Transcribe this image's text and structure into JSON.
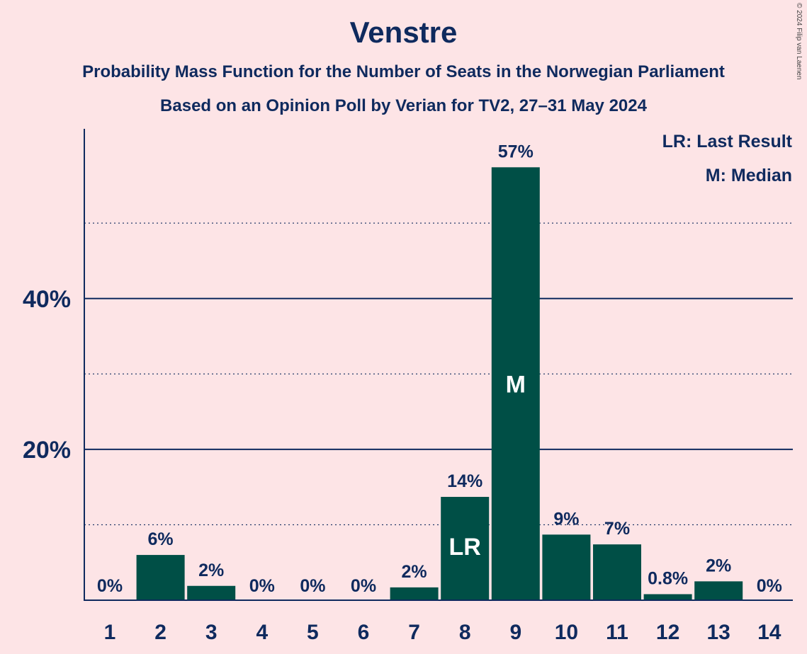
{
  "chart_data": {
    "type": "bar",
    "title": "Venstre",
    "subtitle": "Probability Mass Function for the Number of Seats in the Norwegian Parliament",
    "source": "Based on an Opinion Poll by Verian for TV2, 27–31 May 2024",
    "copyright": "© 2024 Filip van Laenen",
    "categories": [
      "1",
      "2",
      "3",
      "4",
      "5",
      "6",
      "7",
      "8",
      "9",
      "10",
      "11",
      "12",
      "13",
      "14"
    ],
    "values": [
      0,
      6.0,
      1.9,
      0,
      0,
      0,
      1.7,
      13.7,
      57.4,
      8.7,
      7.4,
      0.8,
      2.5,
      0
    ],
    "value_labels": [
      "0%",
      "6%",
      "2%",
      "0%",
      "0%",
      "0%",
      "2%",
      "14%",
      "57%",
      "9%",
      "7%",
      "0.8%",
      "2%",
      "0%"
    ],
    "inside_labels": {
      "8": "LR",
      "9": "M"
    },
    "ylim": [
      0,
      62.5
    ],
    "y_ticks_labeled": [
      {
        "value": 20,
        "label": "20%"
      },
      {
        "value": 40,
        "label": "40%"
      }
    ],
    "y_grid_solid": [
      20,
      40
    ],
    "y_grid_dotted": [
      10,
      30,
      50
    ],
    "legend": [
      "LR: Last Result",
      "M: Median"
    ],
    "legend_position": "top-right",
    "xlabel": "",
    "ylabel": "",
    "colors": {
      "bar": "#004f46",
      "background": "#fde4e6",
      "text": "#0f2a5e"
    }
  }
}
